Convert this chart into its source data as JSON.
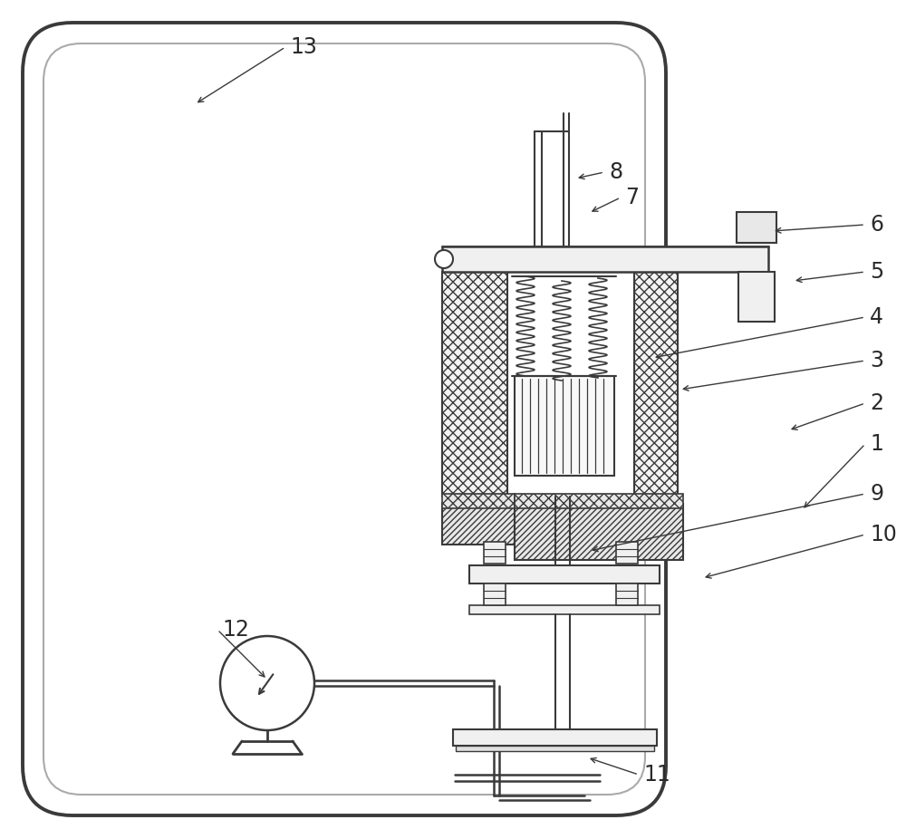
{
  "bg_color": "#ffffff",
  "line_color": "#3a3a3a",
  "figsize": [
    10.0,
    9.26
  ],
  "dpi": 100,
  "label_fontsize": 17,
  "labels_info": [
    [
      "1",
      960,
      490,
      885,
      563
    ],
    [
      "2",
      960,
      445,
      870,
      475
    ],
    [
      "3",
      960,
      398,
      750,
      430
    ],
    [
      "4",
      960,
      350,
      720,
      395
    ],
    [
      "5",
      960,
      300,
      875,
      310
    ],
    [
      "6",
      960,
      248,
      852,
      255
    ],
    [
      "7",
      690,
      218,
      650,
      235
    ],
    [
      "8",
      672,
      190,
      635,
      197
    ],
    [
      "9",
      960,
      545,
      650,
      608
    ],
    [
      "10",
      960,
      590,
      775,
      638
    ],
    [
      "11",
      710,
      855,
      648,
      836
    ],
    [
      "12",
      245,
      695,
      295,
      750
    ],
    [
      "13",
      320,
      52,
      215,
      115
    ]
  ]
}
